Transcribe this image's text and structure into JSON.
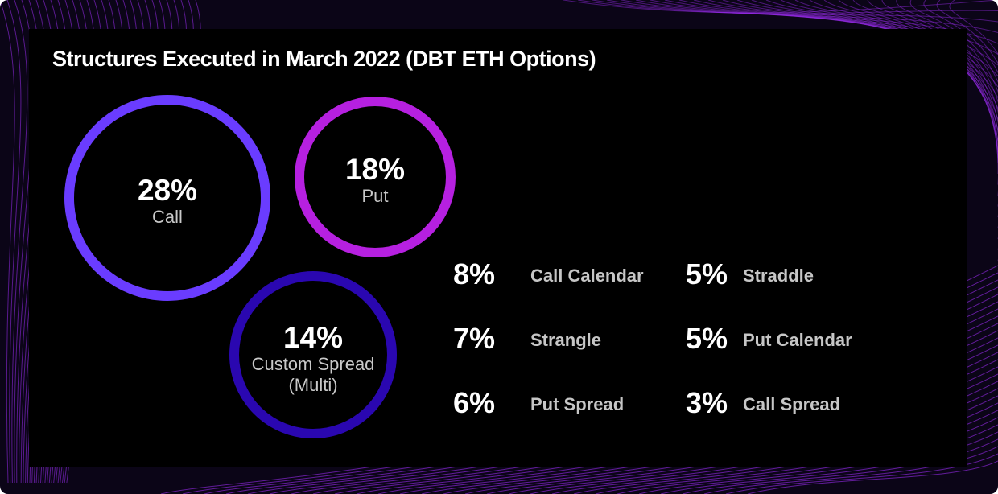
{
  "colors": {
    "background": "#0b0517",
    "panel": "#000000",
    "waves": "#9b2cf0",
    "call": "#6a3cff",
    "put": "#b620e0",
    "custom_spread": "#2a07b0"
  },
  "chart_data": {
    "type": "bubble",
    "title": "Structures Executed in March 2022 (DBT ETH Options)",
    "unit": "%",
    "bubbles": [
      {
        "pct": "28%",
        "value": 28,
        "label": "Call",
        "color": "#6a3cff"
      },
      {
        "pct": "18%",
        "value": 18,
        "label": "Put",
        "color": "#b620e0"
      },
      {
        "pct": "14%",
        "value": 14,
        "label": "Custom Spread",
        "label2": "(Multi)",
        "color": "#2a07b0"
      }
    ],
    "list": [
      {
        "pct": "8%",
        "value": 8,
        "label": "Call Calendar"
      },
      {
        "pct": "7%",
        "value": 7,
        "label": "Strangle"
      },
      {
        "pct": "6%",
        "value": 6,
        "label": "Put Spread"
      },
      {
        "pct": "5%",
        "value": 5,
        "label": "Straddle"
      },
      {
        "pct": "5%",
        "value": 5,
        "label": "Put Calendar"
      },
      {
        "pct": "3%",
        "value": 3,
        "label": "Call Spread"
      }
    ]
  }
}
